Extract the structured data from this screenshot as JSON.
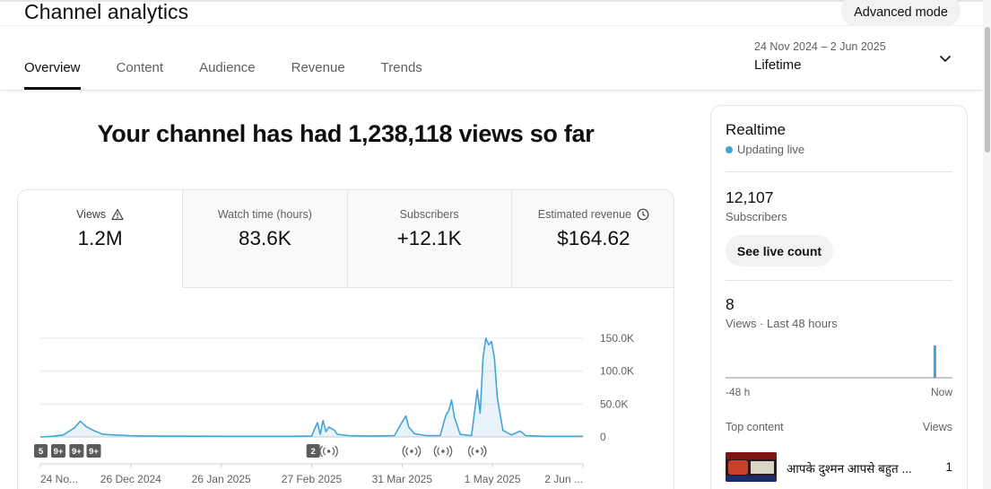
{
  "header": {
    "title": "Channel analytics",
    "advanced_mode": "Advanced mode"
  },
  "tabs": [
    {
      "label": "Overview",
      "active": true
    },
    {
      "label": "Content",
      "active": false
    },
    {
      "label": "Audience",
      "active": false
    },
    {
      "label": "Revenue",
      "active": false
    },
    {
      "label": "Trends",
      "active": false
    }
  ],
  "date_picker": {
    "range": "24 Nov 2024 – 2 Jun 2025",
    "label": "Lifetime",
    "icon": "chevron-down-icon"
  },
  "headline": "Your channel has had 1,238,118 views so far",
  "metrics": [
    {
      "label": "Views",
      "value": "1.2M",
      "icon": "warning-icon"
    },
    {
      "label": "Watch time (hours)",
      "value": "83.6K"
    },
    {
      "label": "Subscribers",
      "value": "+12.1K"
    },
    {
      "label": "Estimated revenue",
      "value": "$164.62",
      "icon": "clock-icon"
    }
  ],
  "chart_data": {
    "type": "area",
    "x_tick_labels": [
      "24 No...",
      "26 Dec 2024",
      "26 Jan 2025",
      "27 Feb 2025",
      "31 Mar 2025",
      "1 May 2025",
      "2 Jun ..."
    ],
    "y_tick_labels": [
      "150.0K",
      "100.0K",
      "50.0K",
      "0"
    ],
    "ylim": [
      0,
      150000
    ],
    "series": [
      {
        "color": "#41a5d8",
        "points": [
          [
            "2024-11-24",
            0
          ],
          [
            "2024-11-28",
            1000
          ],
          [
            "2024-12-02",
            3000
          ],
          [
            "2024-12-06",
            14000
          ],
          [
            "2024-12-08",
            24000
          ],
          [
            "2024-12-10",
            16000
          ],
          [
            "2024-12-13",
            9000
          ],
          [
            "2024-12-16",
            4000
          ],
          [
            "2024-12-20",
            3000
          ],
          [
            "2024-12-25",
            2000
          ],
          [
            "2024-12-31",
            1500
          ],
          [
            "2025-01-10",
            1200
          ],
          [
            "2025-02-01",
            1000
          ],
          [
            "2025-02-20",
            1000
          ],
          [
            "2025-02-27",
            1500
          ],
          [
            "2025-03-01",
            22000
          ],
          [
            "2025-03-02",
            4000
          ],
          [
            "2025-03-03",
            25000
          ],
          [
            "2025-03-04",
            8000
          ],
          [
            "2025-03-05",
            15000
          ],
          [
            "2025-03-07",
            10000
          ],
          [
            "2025-03-08",
            4000
          ],
          [
            "2025-03-12",
            2000
          ],
          [
            "2025-03-20",
            1500
          ],
          [
            "2025-03-28",
            2000
          ],
          [
            "2025-03-31",
            25000
          ],
          [
            "2025-04-01",
            32000
          ],
          [
            "2025-04-02",
            15000
          ],
          [
            "2025-04-04",
            5000
          ],
          [
            "2025-04-08",
            2000
          ],
          [
            "2025-04-13",
            2000
          ],
          [
            "2025-04-15",
            33000
          ],
          [
            "2025-04-16",
            40000
          ],
          [
            "2025-04-17",
            56000
          ],
          [
            "2025-04-18",
            30000
          ],
          [
            "2025-04-20",
            4000
          ],
          [
            "2025-04-24",
            2000
          ],
          [
            "2025-04-26",
            71000
          ],
          [
            "2025-04-27",
            36000
          ],
          [
            "2025-04-28",
            120000
          ],
          [
            "2025-04-29",
            150000
          ],
          [
            "2025-04-30",
            140000
          ],
          [
            "2025-05-01",
            145000
          ],
          [
            "2025-05-02",
            120000
          ],
          [
            "2025-05-03",
            60000
          ],
          [
            "2025-05-05",
            10000
          ],
          [
            "2025-05-08",
            3000
          ],
          [
            "2025-05-11",
            9000
          ],
          [
            "2025-05-13",
            2000
          ],
          [
            "2025-05-20",
            1000
          ],
          [
            "2025-06-02",
            1000
          ]
        ]
      }
    ],
    "event_badges": [
      {
        "date": "2024-11-24",
        "label": "5"
      },
      {
        "date": "2024-11-30",
        "label": "9+"
      },
      {
        "date": "2024-12-07",
        "label": "9+"
      },
      {
        "date": "2024-12-13",
        "label": "9+"
      },
      {
        "date": "2025-02-28",
        "label": "2"
      }
    ],
    "live_markers": [
      "2025-03-05",
      "2025-04-03",
      "2025-04-14",
      "2025-04-26"
    ],
    "grid": true
  },
  "realtime": {
    "title": "Realtime",
    "status": "Updating live",
    "subscribers_count": "12,107",
    "subscribers_label": "Subscribers",
    "live_count_button": "See live count",
    "views_count": "8",
    "views_label": "Views · Last 48 hours",
    "mini_chart": {
      "bars": [
        {
          "hour": 44,
          "value": 8
        }
      ],
      "max": 8
    },
    "axis_left": "-48 h",
    "axis_right": "Now",
    "top_content_label": "Top content",
    "views_column_label": "Views",
    "top_items": [
      {
        "title": "आपके दुश्मन आपसे बहुत ...",
        "views": "1"
      }
    ]
  }
}
